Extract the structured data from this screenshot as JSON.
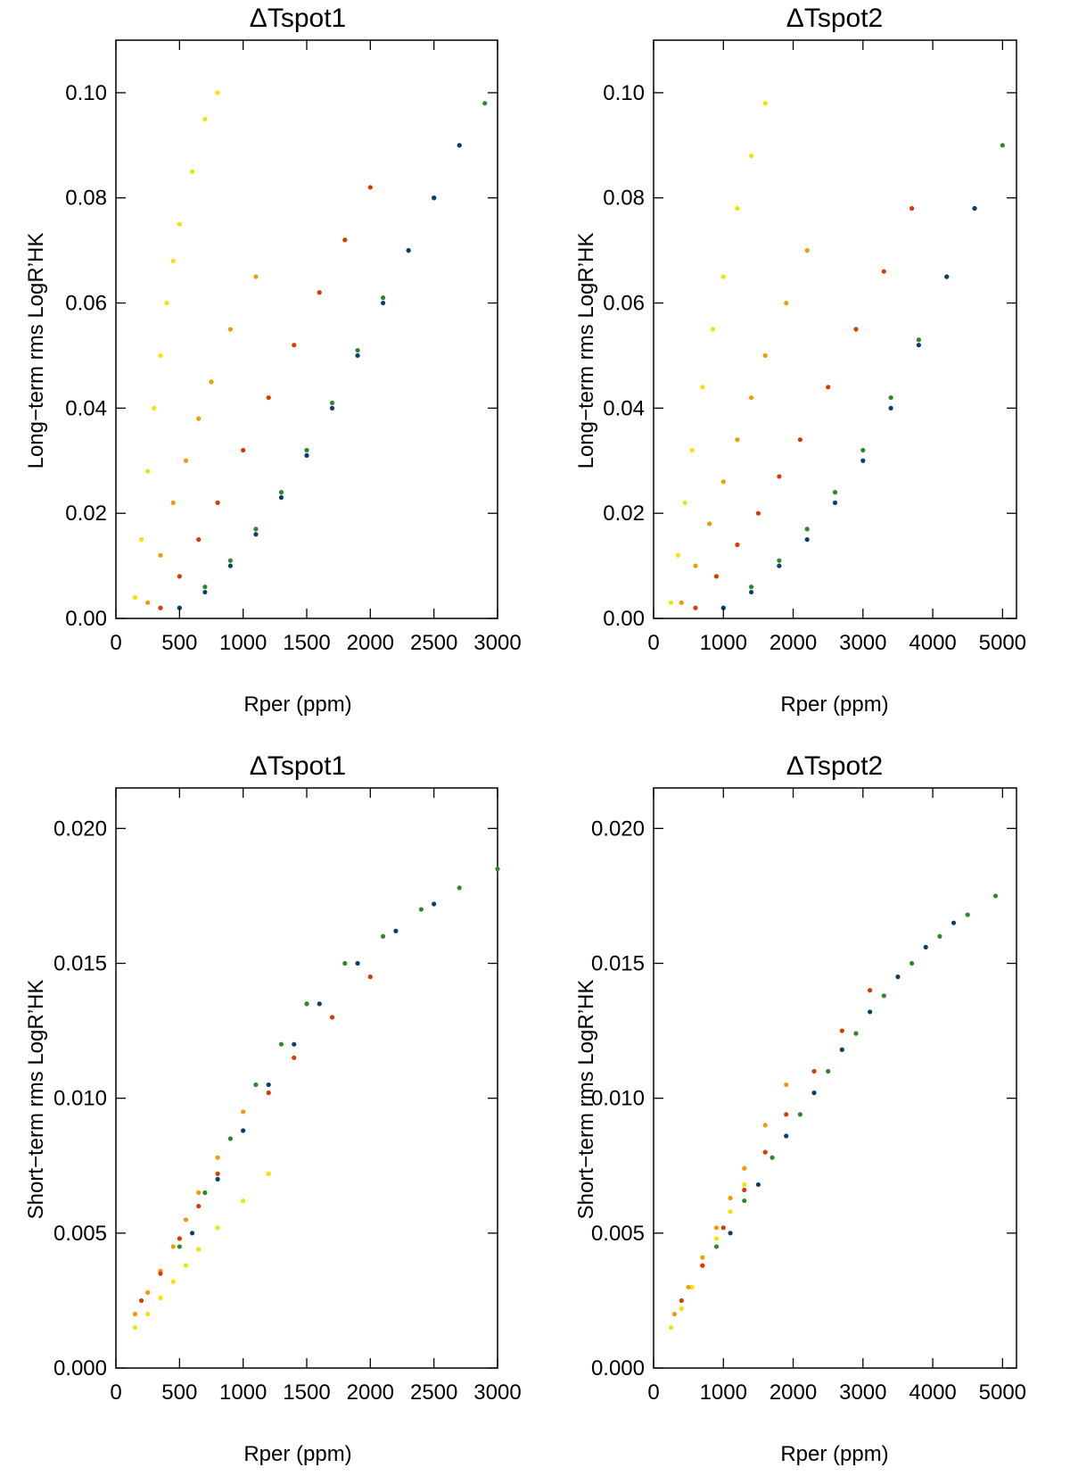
{
  "chart_data": [
    {
      "type": "scatter",
      "title": "ΔTspot1",
      "xlabel": "Rper (ppm)",
      "ylabel": "Long−term rms LogR’HK",
      "xlim": [
        0,
        3000
      ],
      "ylim": [
        0,
        0.11
      ],
      "xticks": [
        "0",
        "500",
        "1000",
        "1500",
        "2000",
        "2500",
        "3000"
      ],
      "yticks": [
        "0.00",
        "0.02",
        "0.04",
        "0.06",
        "0.08",
        "0.10"
      ],
      "series": [
        {
          "color": "#f2e400",
          "x": [
            150,
            200,
            250,
            300,
            350,
            400,
            450,
            500,
            600,
            700,
            800
          ],
          "y": [
            0.004,
            0.015,
            0.028,
            0.04,
            0.05,
            0.06,
            0.068,
            0.075,
            0.085,
            0.095,
            0.1
          ]
        },
        {
          "color": "#f29a00",
          "x": [
            250,
            350,
            450,
            550,
            650,
            750,
            900,
            1100
          ],
          "y": [
            0.003,
            0.012,
            0.022,
            0.03,
            0.038,
            0.045,
            0.055,
            0.065
          ]
        },
        {
          "color": "#d83a00",
          "x": [
            350,
            500,
            650,
            800,
            1000,
            1200,
            1400,
            1600,
            1800,
            2000
          ],
          "y": [
            0.002,
            0.008,
            0.015,
            0.022,
            0.032,
            0.042,
            0.052,
            0.062,
            0.072,
            0.082
          ]
        },
        {
          "color": "#2a8a2a",
          "x": [
            500,
            700,
            900,
            1100,
            1300,
            1500,
            1700,
            1900,
            2100,
            2300,
            2500,
            2700,
            2900
          ],
          "y": [
            0.002,
            0.006,
            0.011,
            0.017,
            0.024,
            0.032,
            0.041,
            0.051,
            0.061,
            0.07,
            0.08,
            0.09,
            0.098
          ]
        },
        {
          "color": "#0b3f6b",
          "x": [
            500,
            700,
            900,
            1100,
            1300,
            1500,
            1700,
            1900,
            2100,
            2300,
            2500,
            2700
          ],
          "y": [
            0.002,
            0.005,
            0.01,
            0.016,
            0.023,
            0.031,
            0.04,
            0.05,
            0.06,
            0.07,
            0.08,
            0.09
          ]
        }
      ]
    },
    {
      "type": "scatter",
      "title": "ΔTspot2",
      "xlabel": "Rper (ppm)",
      "ylabel": "Long−term rms LogR’HK",
      "xlim": [
        0,
        5200
      ],
      "ylim": [
        0,
        0.11
      ],
      "xticks": [
        "0",
        "1000",
        "2000",
        "3000",
        "4000",
        "5000"
      ],
      "yticks": [
        "0.00",
        "0.02",
        "0.04",
        "0.06",
        "0.08",
        "0.10"
      ],
      "series": [
        {
          "color": "#f2e400",
          "x": [
            250,
            350,
            450,
            550,
            700,
            850,
            1000,
            1200,
            1400,
            1600
          ],
          "y": [
            0.003,
            0.012,
            0.022,
            0.032,
            0.044,
            0.055,
            0.065,
            0.078,
            0.088,
            0.098
          ]
        },
        {
          "color": "#f29a00",
          "x": [
            400,
            600,
            800,
            1000,
            1200,
            1400,
            1600,
            1900,
            2200
          ],
          "y": [
            0.003,
            0.01,
            0.018,
            0.026,
            0.034,
            0.042,
            0.05,
            0.06,
            0.07
          ]
        },
        {
          "color": "#d83a00",
          "x": [
            600,
            900,
            1200,
            1500,
            1800,
            2100,
            2500,
            2900,
            3300,
            3700
          ],
          "y": [
            0.002,
            0.008,
            0.014,
            0.02,
            0.027,
            0.034,
            0.044,
            0.055,
            0.066,
            0.078
          ]
        },
        {
          "color": "#2a8a2a",
          "x": [
            1000,
            1400,
            1800,
            2200,
            2600,
            3000,
            3400,
            3800,
            4200,
            4600,
            5000
          ],
          "y": [
            0.002,
            0.006,
            0.011,
            0.017,
            0.024,
            0.032,
            0.042,
            0.053,
            0.065,
            0.078,
            0.09
          ]
        },
        {
          "color": "#0b3f6b",
          "x": [
            1000,
            1400,
            1800,
            2200,
            2600,
            3000,
            3400,
            3800,
            4200,
            4600
          ],
          "y": [
            0.002,
            0.005,
            0.01,
            0.015,
            0.022,
            0.03,
            0.04,
            0.052,
            0.065,
            0.078
          ]
        }
      ]
    },
    {
      "type": "scatter",
      "title": "ΔTspot1",
      "xlabel": "Rper (ppm)",
      "ylabel": "Short−term rms LogR’HK",
      "xlim": [
        0,
        3000
      ],
      "ylim": [
        0,
        0.0215
      ],
      "xticks": [
        "0",
        "500",
        "1000",
        "1500",
        "2000",
        "2500",
        "3000"
      ],
      "yticks": [
        "0.000",
        "0.005",
        "0.010",
        "0.015",
        "0.020"
      ],
      "series": [
        {
          "color": "#f2e400",
          "x": [
            150,
            250,
            350,
            450,
            550,
            650,
            800,
            1000,
            1200
          ],
          "y": [
            0.0015,
            0.002,
            0.0026,
            0.0032,
            0.0038,
            0.0044,
            0.0052,
            0.0062,
            0.0072
          ]
        },
        {
          "color": "#f29a00",
          "x": [
            150,
            250,
            350,
            450,
            550,
            650,
            800,
            1000
          ],
          "y": [
            0.002,
            0.0028,
            0.0036,
            0.0045,
            0.0055,
            0.0065,
            0.0078,
            0.0095
          ]
        },
        {
          "color": "#d83a00",
          "x": [
            200,
            350,
            500,
            650,
            800,
            1000,
            1200,
            1400,
            1700,
            2000
          ],
          "y": [
            0.0025,
            0.0035,
            0.0048,
            0.006,
            0.0072,
            0.0088,
            0.0102,
            0.0115,
            0.013,
            0.0145
          ]
        },
        {
          "color": "#2a8a2a",
          "x": [
            500,
            700,
            900,
            1100,
            1300,
            1500,
            1800,
            2100,
            2400,
            2700,
            3000
          ],
          "y": [
            0.0045,
            0.0065,
            0.0085,
            0.0105,
            0.012,
            0.0135,
            0.015,
            0.016,
            0.017,
            0.0178,
            0.0185
          ]
        },
        {
          "color": "#0b3f6b",
          "x": [
            600,
            800,
            1000,
            1200,
            1400,
            1600,
            1900,
            2200,
            2500
          ],
          "y": [
            0.005,
            0.007,
            0.0088,
            0.0105,
            0.012,
            0.0135,
            0.015,
            0.0162,
            0.0172
          ]
        }
      ]
    },
    {
      "type": "scatter",
      "title": "ΔTspot2",
      "xlabel": "Rper (ppm)",
      "ylabel": "Short−term rms LogR’HK",
      "xlim": [
        0,
        5200
      ],
      "ylim": [
        0,
        0.0215
      ],
      "xticks": [
        "0",
        "1000",
        "2000",
        "3000",
        "4000",
        "5000"
      ],
      "yticks": [
        "0.000",
        "0.005",
        "0.010",
        "0.015",
        "0.020"
      ],
      "series": [
        {
          "color": "#f2e400",
          "x": [
            250,
            400,
            550,
            700,
            900,
            1100,
            1300
          ],
          "y": [
            0.0015,
            0.0022,
            0.003,
            0.0038,
            0.0048,
            0.0058,
            0.0068
          ]
        },
        {
          "color": "#f29a00",
          "x": [
            300,
            500,
            700,
            900,
            1100,
            1300,
            1600,
            1900
          ],
          "y": [
            0.002,
            0.003,
            0.0041,
            0.0052,
            0.0063,
            0.0074,
            0.009,
            0.0105
          ]
        },
        {
          "color": "#d83a00",
          "x": [
            400,
            700,
            1000,
            1300,
            1600,
            1900,
            2300,
            2700,
            3100
          ],
          "y": [
            0.0025,
            0.0038,
            0.0052,
            0.0066,
            0.008,
            0.0094,
            0.011,
            0.0125,
            0.014
          ]
        },
        {
          "color": "#2a8a2a",
          "x": [
            900,
            1300,
            1700,
            2100,
            2500,
            2900,
            3300,
            3700,
            4100,
            4500,
            4900
          ],
          "y": [
            0.0045,
            0.0062,
            0.0078,
            0.0094,
            0.011,
            0.0124,
            0.0138,
            0.015,
            0.016,
            0.0168,
            0.0175
          ]
        },
        {
          "color": "#0b3f6b",
          "x": [
            1100,
            1500,
            1900,
            2300,
            2700,
            3100,
            3500,
            3900,
            4300
          ],
          "y": [
            0.005,
            0.0068,
            0.0086,
            0.0102,
            0.0118,
            0.0132,
            0.0145,
            0.0156,
            0.0165
          ]
        }
      ]
    }
  ]
}
